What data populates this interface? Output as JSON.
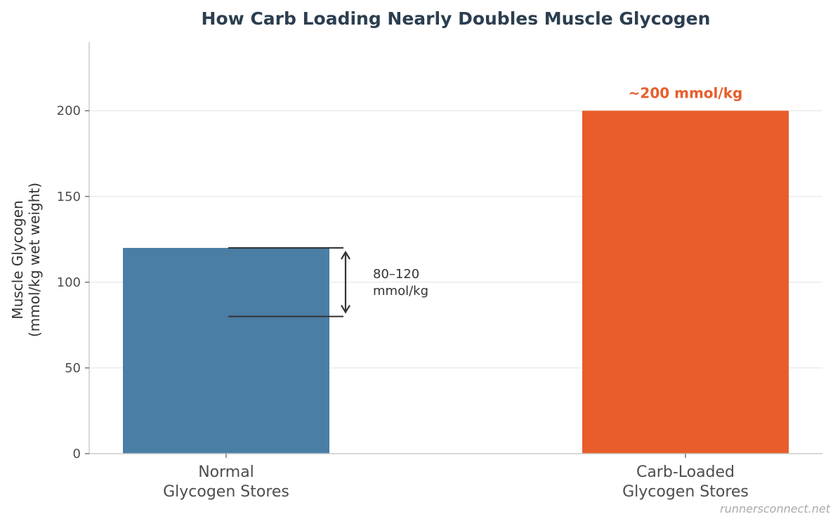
{
  "chart_data": {
    "type": "bar",
    "title": "How Carb Loading Nearly Doubles Muscle Glycogen",
    "categories": [
      "Normal\nGlycogen Stores",
      "Carb-Loaded\nGlycogen Stores"
    ],
    "values": [
      120,
      200
    ],
    "colors": [
      "#4a7ea5",
      "#e85d2b"
    ],
    "ylabel": "Muscle Glycogen\n(mmol/kg wet weight)",
    "ylim": [
      0,
      240
    ],
    "yticks": [
      0,
      50,
      100,
      150,
      200
    ],
    "grid": "horizontal",
    "annotations": {
      "range": {
        "low": 80,
        "high": 120,
        "text": "80–120\nmmol/kg",
        "category_index": 0
      },
      "bar_value_label": {
        "text": "~200 mmol/kg",
        "category_index": 1,
        "color": "#e85d2b"
      }
    }
  },
  "watermark": "runnersconnect.net"
}
